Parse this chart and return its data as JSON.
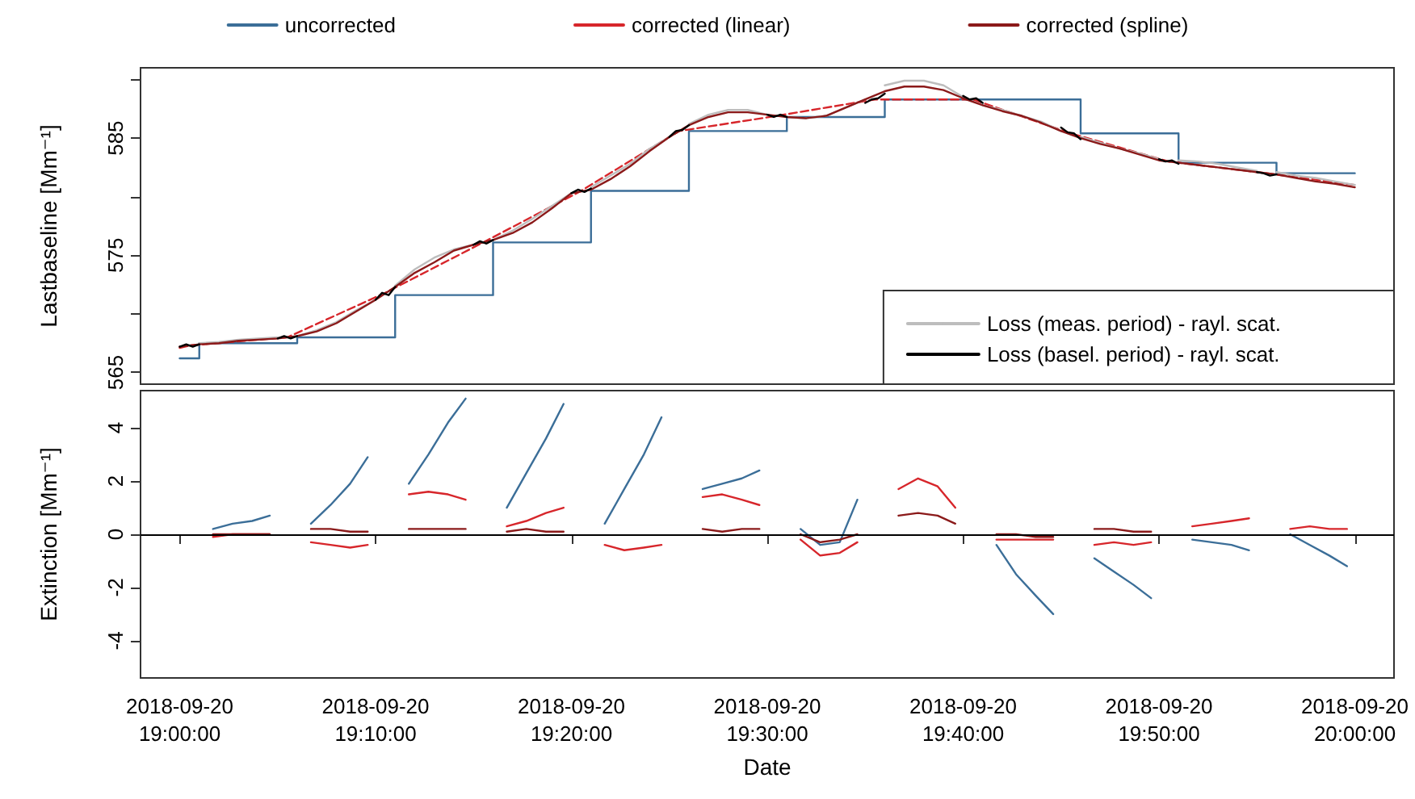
{
  "chart_data": [
    {
      "type": "line",
      "ylabel": "Lastbaseline [Mm⁻¹]",
      "xlim": [
        "2018-09-20T18:58",
        "2018-09-20T20:02"
      ],
      "ylim": [
        564,
        591
      ],
      "yticks": [
        565,
        {
          "value": 570,
          "label": null
        },
        575,
        {
          "value": 580,
          "label": null
        },
        585,
        {
          "value": 590,
          "label": null
        }
      ],
      "tick_labels": "y",
      "legend": "bottom right",
      "marker": "none",
      "series": [
        {
          "type": "step",
          "color": "#3b6e98",
          "x": [
            "2018-09-20T19:00",
            "2018-09-20T19:01",
            "2018-09-20T19:06",
            "2018-09-20T19:11",
            "2018-09-20T19:16",
            "2018-09-20T19:21",
            "2018-09-20T19:26",
            "2018-09-20T19:31",
            "2018-09-20T19:36",
            "2018-09-20T19:41",
            "2018-09-20T19:46",
            "2018-09-20T19:51",
            "2018-09-20T19:56",
            "2018-09-20T20:00"
          ],
          "values": [
            566.2,
            567.5,
            568.0,
            571.6,
            576.1,
            580.5,
            585.6,
            586.8,
            588.3,
            588.3,
            585.4,
            582.9,
            582.0,
            582.0
          ]
        },
        {
          "color": "#d7262b",
          "line_style": "dashed",
          "x": [
            "2018-09-20T19:00",
            "2018-09-20T19:00:30",
            "2018-09-20T19:05:30",
            "2018-09-20T19:10:30",
            "2018-09-20T19:15:30",
            "2018-09-20T19:20:30",
            "2018-09-20T19:25:30",
            "2018-09-20T19:30:30",
            "2018-09-20T19:35:30",
            "2018-09-20T19:40:30",
            "2018-09-20T19:45:30",
            "2018-09-20T19:50:30",
            "2018-09-20T19:55:30",
            "2018-09-20T20:00"
          ],
          "values": [
            567.1,
            567.3,
            568.0,
            571.8,
            576.1,
            580.5,
            585.6,
            586.9,
            588.3,
            588.3,
            585.4,
            583.0,
            582.0,
            581.0
          ]
        },
        {
          "name": "Loss (meas. period) - rayl. scat.",
          "color": "#bdbdbd",
          "x": [
            "2018-09-20T19:01",
            "2018-09-20T19:02",
            "2018-09-20T19:03",
            "2018-09-20T19:04",
            "2018-09-20T19:05",
            "2018-09-20T19:05:30",
            "2018-09-20T19:06",
            "2018-09-20T19:07",
            "2018-09-20T19:08",
            "2018-09-20T19:09",
            "2018-09-20T19:10",
            "2018-09-20T19:10:30",
            "2018-09-20T19:11",
            "2018-09-20T19:12",
            "2018-09-20T19:13",
            "2018-09-20T19:14",
            "2018-09-20T19:15",
            "2018-09-20T19:15:30",
            "2018-09-20T19:16",
            "2018-09-20T19:17",
            "2018-09-20T19:18",
            "2018-09-20T19:19",
            "2018-09-20T19:20",
            "2018-09-20T19:20:30",
            "2018-09-20T19:21",
            "2018-09-20T19:22",
            "2018-09-20T19:23",
            "2018-09-20T19:24",
            "2018-09-20T19:25",
            "2018-09-20T19:25:30",
            "2018-09-20T19:26",
            "2018-09-20T19:27",
            "2018-09-20T19:28",
            "2018-09-20T19:29",
            "2018-09-20T19:30",
            "2018-09-20T19:30:30",
            "2018-09-20T19:31",
            "2018-09-20T19:32",
            "2018-09-20T19:33",
            "2018-09-20T19:34",
            "2018-09-20T19:35",
            "2018-09-20T19:35:30",
            "2018-09-20T19:36",
            "2018-09-20T19:37",
            "2018-09-20T19:38",
            "2018-09-20T19:39",
            "2018-09-20T19:40",
            "2018-09-20T19:40:30",
            "2018-09-20T19:41",
            "2018-09-20T19:42",
            "2018-09-20T19:43",
            "2018-09-20T19:44",
            "2018-09-20T19:45",
            "2018-09-20T19:45:30",
            "2018-09-20T19:46",
            "2018-09-20T19:47",
            "2018-09-20T19:48",
            "2018-09-20T19:49",
            "2018-09-20T19:50",
            "2018-09-20T19:50:30",
            "2018-09-20T19:51",
            "2018-09-20T19:52",
            "2018-09-20T19:53",
            "2018-09-20T19:54",
            "2018-09-20T19:55",
            "2018-09-20T19:55:30",
            "2018-09-20T19:56",
            "2018-09-20T19:57",
            "2018-09-20T19:58",
            "2018-09-20T19:59",
            "2018-09-20T20:00"
          ],
          "values": [
            567.5,
            567.6,
            567.8,
            567.9,
            568.0,
            null,
            568.1,
            568.6,
            569.3,
            570.3,
            571.2,
            null,
            572.4,
            573.8,
            574.8,
            575.5,
            575.9,
            null,
            576.3,
            577.1,
            578.1,
            579.2,
            580.3,
            null,
            580.8,
            581.8,
            582.8,
            584.1,
            585.1,
            null,
            586.2,
            587.0,
            587.4,
            587.4,
            587.0,
            null,
            586.8,
            586.7,
            586.9,
            587.6,
            588.3,
            null,
            589.5,
            589.9,
            589.9,
            589.5,
            588.5,
            null,
            587.8,
            587.4,
            586.9,
            586.4,
            585.6,
            null,
            585.1,
            584.6,
            584.1,
            583.7,
            583.2,
            null,
            583.1,
            583.0,
            582.8,
            582.5,
            582.2,
            null,
            582.1,
            581.8,
            581.6,
            581.3,
            581.0
          ]
        },
        {
          "color": "#8b1a1a",
          "x": [
            "2018-09-20T19:00",
            "2018-09-20T19:01",
            "2018-09-20T19:02",
            "2018-09-20T19:03",
            "2018-09-20T19:04",
            "2018-09-20T19:05",
            "2018-09-20T19:06",
            "2018-09-20T19:07",
            "2018-09-20T19:08",
            "2018-09-20T19:09",
            "2018-09-20T19:10",
            "2018-09-20T19:11",
            "2018-09-20T19:12",
            "2018-09-20T19:13",
            "2018-09-20T19:14",
            "2018-09-20T19:15",
            "2018-09-20T19:16",
            "2018-09-20T19:17",
            "2018-09-20T19:18",
            "2018-09-20T19:19",
            "2018-09-20T19:20",
            "2018-09-20T19:21",
            "2018-09-20T19:22",
            "2018-09-20T19:23",
            "2018-09-20T19:24",
            "2018-09-20T19:25",
            "2018-09-20T19:26",
            "2018-09-20T19:27",
            "2018-09-20T19:28",
            "2018-09-20T19:29",
            "2018-09-20T19:30",
            "2018-09-20T19:31",
            "2018-09-20T19:32",
            "2018-09-20T19:33",
            "2018-09-20T19:34",
            "2018-09-20T19:35",
            "2018-09-20T19:36",
            "2018-09-20T19:37",
            "2018-09-20T19:38",
            "2018-09-20T19:39",
            "2018-09-20T19:40",
            "2018-09-20T19:41",
            "2018-09-20T19:42",
            "2018-09-20T19:43",
            "2018-09-20T19:44",
            "2018-09-20T19:45",
            "2018-09-20T19:46",
            "2018-09-20T19:47",
            "2018-09-20T19:48",
            "2018-09-20T19:49",
            "2018-09-20T19:50",
            "2018-09-20T19:51",
            "2018-09-20T19:52",
            "2018-09-20T19:53",
            "2018-09-20T19:54",
            "2018-09-20T19:55",
            "2018-09-20T19:56",
            "2018-09-20T19:57",
            "2018-09-20T19:58",
            "2018-09-20T19:59",
            "2018-09-20T20:00"
          ],
          "values": [
            567.2,
            567.4,
            567.5,
            567.7,
            567.8,
            567.9,
            568.1,
            568.5,
            569.2,
            570.2,
            571.2,
            572.3,
            573.5,
            574.4,
            575.4,
            575.9,
            576.3,
            576.9,
            577.8,
            579.0,
            580.3,
            580.6,
            581.5,
            582.6,
            583.9,
            585.1,
            586.1,
            586.8,
            587.2,
            587.2,
            587.0,
            586.8,
            586.7,
            586.9,
            587.6,
            588.3,
            589.0,
            589.4,
            589.4,
            589.1,
            588.4,
            587.8,
            587.3,
            586.9,
            586.3,
            585.6,
            585.0,
            584.5,
            584.1,
            583.6,
            583.1,
            582.9,
            582.7,
            582.5,
            582.3,
            582.1,
            581.9,
            581.6,
            581.3,
            581.1,
            580.8
          ]
        },
        {
          "name": "Loss (basel. period) - rayl. scat.",
          "color": "#000000",
          "x": [
            "2018-09-20T19:00",
            "2018-09-20T19:00:20",
            "2018-09-20T19:00:40",
            "2018-09-20T19:01",
            "2018-09-20T19:01:30",
            "2018-09-20T19:05",
            "2018-09-20T19:05:20",
            "2018-09-20T19:05:40",
            "2018-09-20T19:06",
            "2018-09-20T19:06:30",
            "2018-09-20T19:10",
            "2018-09-20T19:10:20",
            "2018-09-20T19:10:40",
            "2018-09-20T19:11",
            "2018-09-20T19:11:30",
            "2018-09-20T19:15",
            "2018-09-20T19:15:20",
            "2018-09-20T19:15:40",
            "2018-09-20T19:16",
            "2018-09-20T19:16:30",
            "2018-09-20T19:20",
            "2018-09-20T19:20:20",
            "2018-09-20T19:20:40",
            "2018-09-20T19:21",
            "2018-09-20T19:21:30",
            "2018-09-20T19:25",
            "2018-09-20T19:25:20",
            "2018-09-20T19:25:40",
            "2018-09-20T19:26",
            "2018-09-20T19:26:30",
            "2018-09-20T19:30",
            "2018-09-20T19:30:20",
            "2018-09-20T19:30:40",
            "2018-09-20T19:31",
            "2018-09-20T19:31:30",
            "2018-09-20T19:35",
            "2018-09-20T19:35:20",
            "2018-09-20T19:35:40",
            "2018-09-20T19:36",
            "2018-09-20T19:36:30",
            "2018-09-20T19:40",
            "2018-09-20T19:40:20",
            "2018-09-20T19:40:40",
            "2018-09-20T19:41",
            "2018-09-20T19:41:30",
            "2018-09-20T19:45",
            "2018-09-20T19:45:20",
            "2018-09-20T19:45:40",
            "2018-09-20T19:46",
            "2018-09-20T19:46:30",
            "2018-09-20T19:50",
            "2018-09-20T19:50:20",
            "2018-09-20T19:50:40",
            "2018-09-20T19:51",
            "2018-09-20T19:51:30",
            "2018-09-20T19:55",
            "2018-09-20T19:55:20",
            "2018-09-20T19:55:40",
            "2018-09-20T19:56"
          ],
          "values": [
            567.2,
            567.4,
            567.2,
            567.4,
            null,
            567.9,
            568.1,
            567.9,
            568.1,
            null,
            571.2,
            571.8,
            571.6,
            572.3,
            null,
            575.9,
            576.2,
            576.0,
            576.3,
            null,
            580.3,
            580.6,
            580.4,
            580.7,
            null,
            585.1,
            585.6,
            585.7,
            586.1,
            null,
            587.0,
            586.8,
            587.0,
            586.8,
            null,
            588.0,
            588.3,
            588.4,
            588.8,
            null,
            588.6,
            588.3,
            588.4,
            588.0,
            null,
            585.9,
            585.5,
            585.4,
            584.9,
            null,
            583.2,
            583.0,
            583.1,
            582.8,
            null,
            582.1,
            582.0,
            581.8,
            581.9
          ]
        }
      ]
    },
    {
      "type": "line",
      "xlabel": "Date",
      "ylabel": "Extinction [Mm⁻¹]",
      "xlim": [
        "2018-09-20T18:58",
        "2018-09-20T20:02"
      ],
      "xticks": [
        {
          "value": "2018-09-20T19:00",
          "label": "2018-09-20\n19:00:00"
        },
        {
          "value": "2018-09-20T19:10",
          "label": "2018-09-20\n19:10:00"
        },
        {
          "value": "2018-09-20T19:20",
          "label": "2018-09-20\n19:20:00"
        },
        {
          "value": "2018-09-20T19:30",
          "label": "2018-09-20\n19:30:00"
        },
        {
          "value": "2018-09-20T19:40",
          "label": "2018-09-20\n19:40:00"
        },
        {
          "value": "2018-09-20T19:50",
          "label": "2018-09-20\n19:50:00"
        },
        {
          "value": "2018-09-20T20:00",
          "label": "2018-09-20\n20:00:00"
        }
      ],
      "ylim": [
        -5.4,
        5.4
      ],
      "yticks": [
        -4,
        -2,
        0,
        2,
        4
      ],
      "legend": "top",
      "marker": "none",
      "ref_lines": [
        {
          "axis": "y",
          "value": 0,
          "color": "#000000"
        }
      ],
      "x": [
        "2018-09-20T19:01:42",
        "2018-09-20T19:02:42",
        "2018-09-20T19:03:42",
        "2018-09-20T19:04:36",
        "2018-09-20T19:05",
        "2018-09-20T19:06:42",
        "2018-09-20T19:07:42",
        "2018-09-20T19:08:42",
        "2018-09-20T19:09:36",
        "2018-09-20T19:10",
        "2018-09-20T19:11:42",
        "2018-09-20T19:12:42",
        "2018-09-20T19:13:42",
        "2018-09-20T19:14:36",
        "2018-09-20T19:15",
        "2018-09-20T19:16:42",
        "2018-09-20T19:17:42",
        "2018-09-20T19:18:42",
        "2018-09-20T19:19:36",
        "2018-09-20T19:20",
        "2018-09-20T19:21:42",
        "2018-09-20T19:22:42",
        "2018-09-20T19:23:42",
        "2018-09-20T19:24:36",
        "2018-09-20T19:25",
        "2018-09-20T19:26:42",
        "2018-09-20T19:27:42",
        "2018-09-20T19:28:42",
        "2018-09-20T19:29:36",
        "2018-09-20T19:30",
        "2018-09-20T19:31:42",
        "2018-09-20T19:32:42",
        "2018-09-20T19:33:42",
        "2018-09-20T19:34:36",
        "2018-09-20T19:35",
        "2018-09-20T19:36:42",
        "2018-09-20T19:37:42",
        "2018-09-20T19:38:42",
        "2018-09-20T19:39:36",
        "2018-09-20T19:40",
        "2018-09-20T19:41:42",
        "2018-09-20T19:42:42",
        "2018-09-20T19:43:42",
        "2018-09-20T19:44:36",
        "2018-09-20T19:45",
        "2018-09-20T19:46:42",
        "2018-09-20T19:47:42",
        "2018-09-20T19:48:42",
        "2018-09-20T19:49:36",
        "2018-09-20T19:50",
        "2018-09-20T19:51:42",
        "2018-09-20T19:52:42",
        "2018-09-20T19:53:42",
        "2018-09-20T19:54:36",
        "2018-09-20T19:55",
        "2018-09-20T19:56:42",
        "2018-09-20T19:57:42",
        "2018-09-20T19:58:42",
        "2018-09-20T19:59:36"
      ],
      "series": [
        {
          "name": "uncorrected",
          "color": "#3b6e98",
          "values": [
            0.2,
            0.4,
            0.5,
            0.7,
            null,
            0.4,
            1.1,
            1.9,
            2.9,
            null,
            1.9,
            3.0,
            4.2,
            5.1,
            null,
            1.0,
            2.3,
            3.6,
            4.9,
            null,
            0.4,
            1.7,
            3.0,
            4.4,
            null,
            1.7,
            1.9,
            2.1,
            2.4,
            null,
            0.2,
            -0.4,
            -0.3,
            1.3,
            null,
            null,
            null,
            null,
            null,
            null,
            -0.4,
            -1.5,
            -2.3,
            -3.0,
            null,
            -0.9,
            -1.4,
            -1.9,
            -2.4,
            null,
            -0.2,
            -0.3,
            -0.4,
            -0.6,
            null,
            0.0,
            -0.4,
            -0.8,
            -1.2
          ]
        },
        {
          "name": "corrected (linear)",
          "color": "#d7262b",
          "values": [
            -0.1,
            0.0,
            0.0,
            0.0,
            null,
            -0.3,
            -0.4,
            -0.5,
            -0.4,
            null,
            1.5,
            1.6,
            1.5,
            1.3,
            null,
            0.3,
            0.5,
            0.8,
            1.0,
            null,
            -0.4,
            -0.6,
            -0.5,
            -0.4,
            null,
            1.4,
            1.5,
            1.3,
            1.1,
            null,
            -0.2,
            -0.8,
            -0.7,
            -0.3,
            null,
            1.7,
            2.1,
            1.8,
            1.0,
            null,
            -0.2,
            -0.2,
            -0.2,
            -0.2,
            null,
            -0.4,
            -0.3,
            -0.4,
            -0.3,
            null,
            0.3,
            0.4,
            0.5,
            0.6,
            null,
            0.2,
            0.3,
            0.2,
            0.2
          ]
        },
        {
          "name": "corrected (spline)",
          "color": "#8b1a1a",
          "values": [
            0.0,
            0.0,
            0.0,
            0.0,
            null,
            0.2,
            0.2,
            0.1,
            0.1,
            null,
            0.2,
            0.2,
            0.2,
            0.2,
            null,
            0.1,
            0.2,
            0.1,
            0.1,
            null,
            null,
            null,
            null,
            null,
            null,
            0.2,
            0.1,
            0.2,
            0.2,
            null,
            0.0,
            -0.3,
            -0.2,
            0.0,
            null,
            0.7,
            0.8,
            0.7,
            0.4,
            null,
            0.0,
            0.0,
            -0.1,
            -0.1,
            null,
            0.2,
            0.2,
            0.1,
            0.1,
            null,
            null,
            null,
            null,
            null,
            null,
            null,
            null,
            null,
            null
          ]
        }
      ]
    }
  ]
}
